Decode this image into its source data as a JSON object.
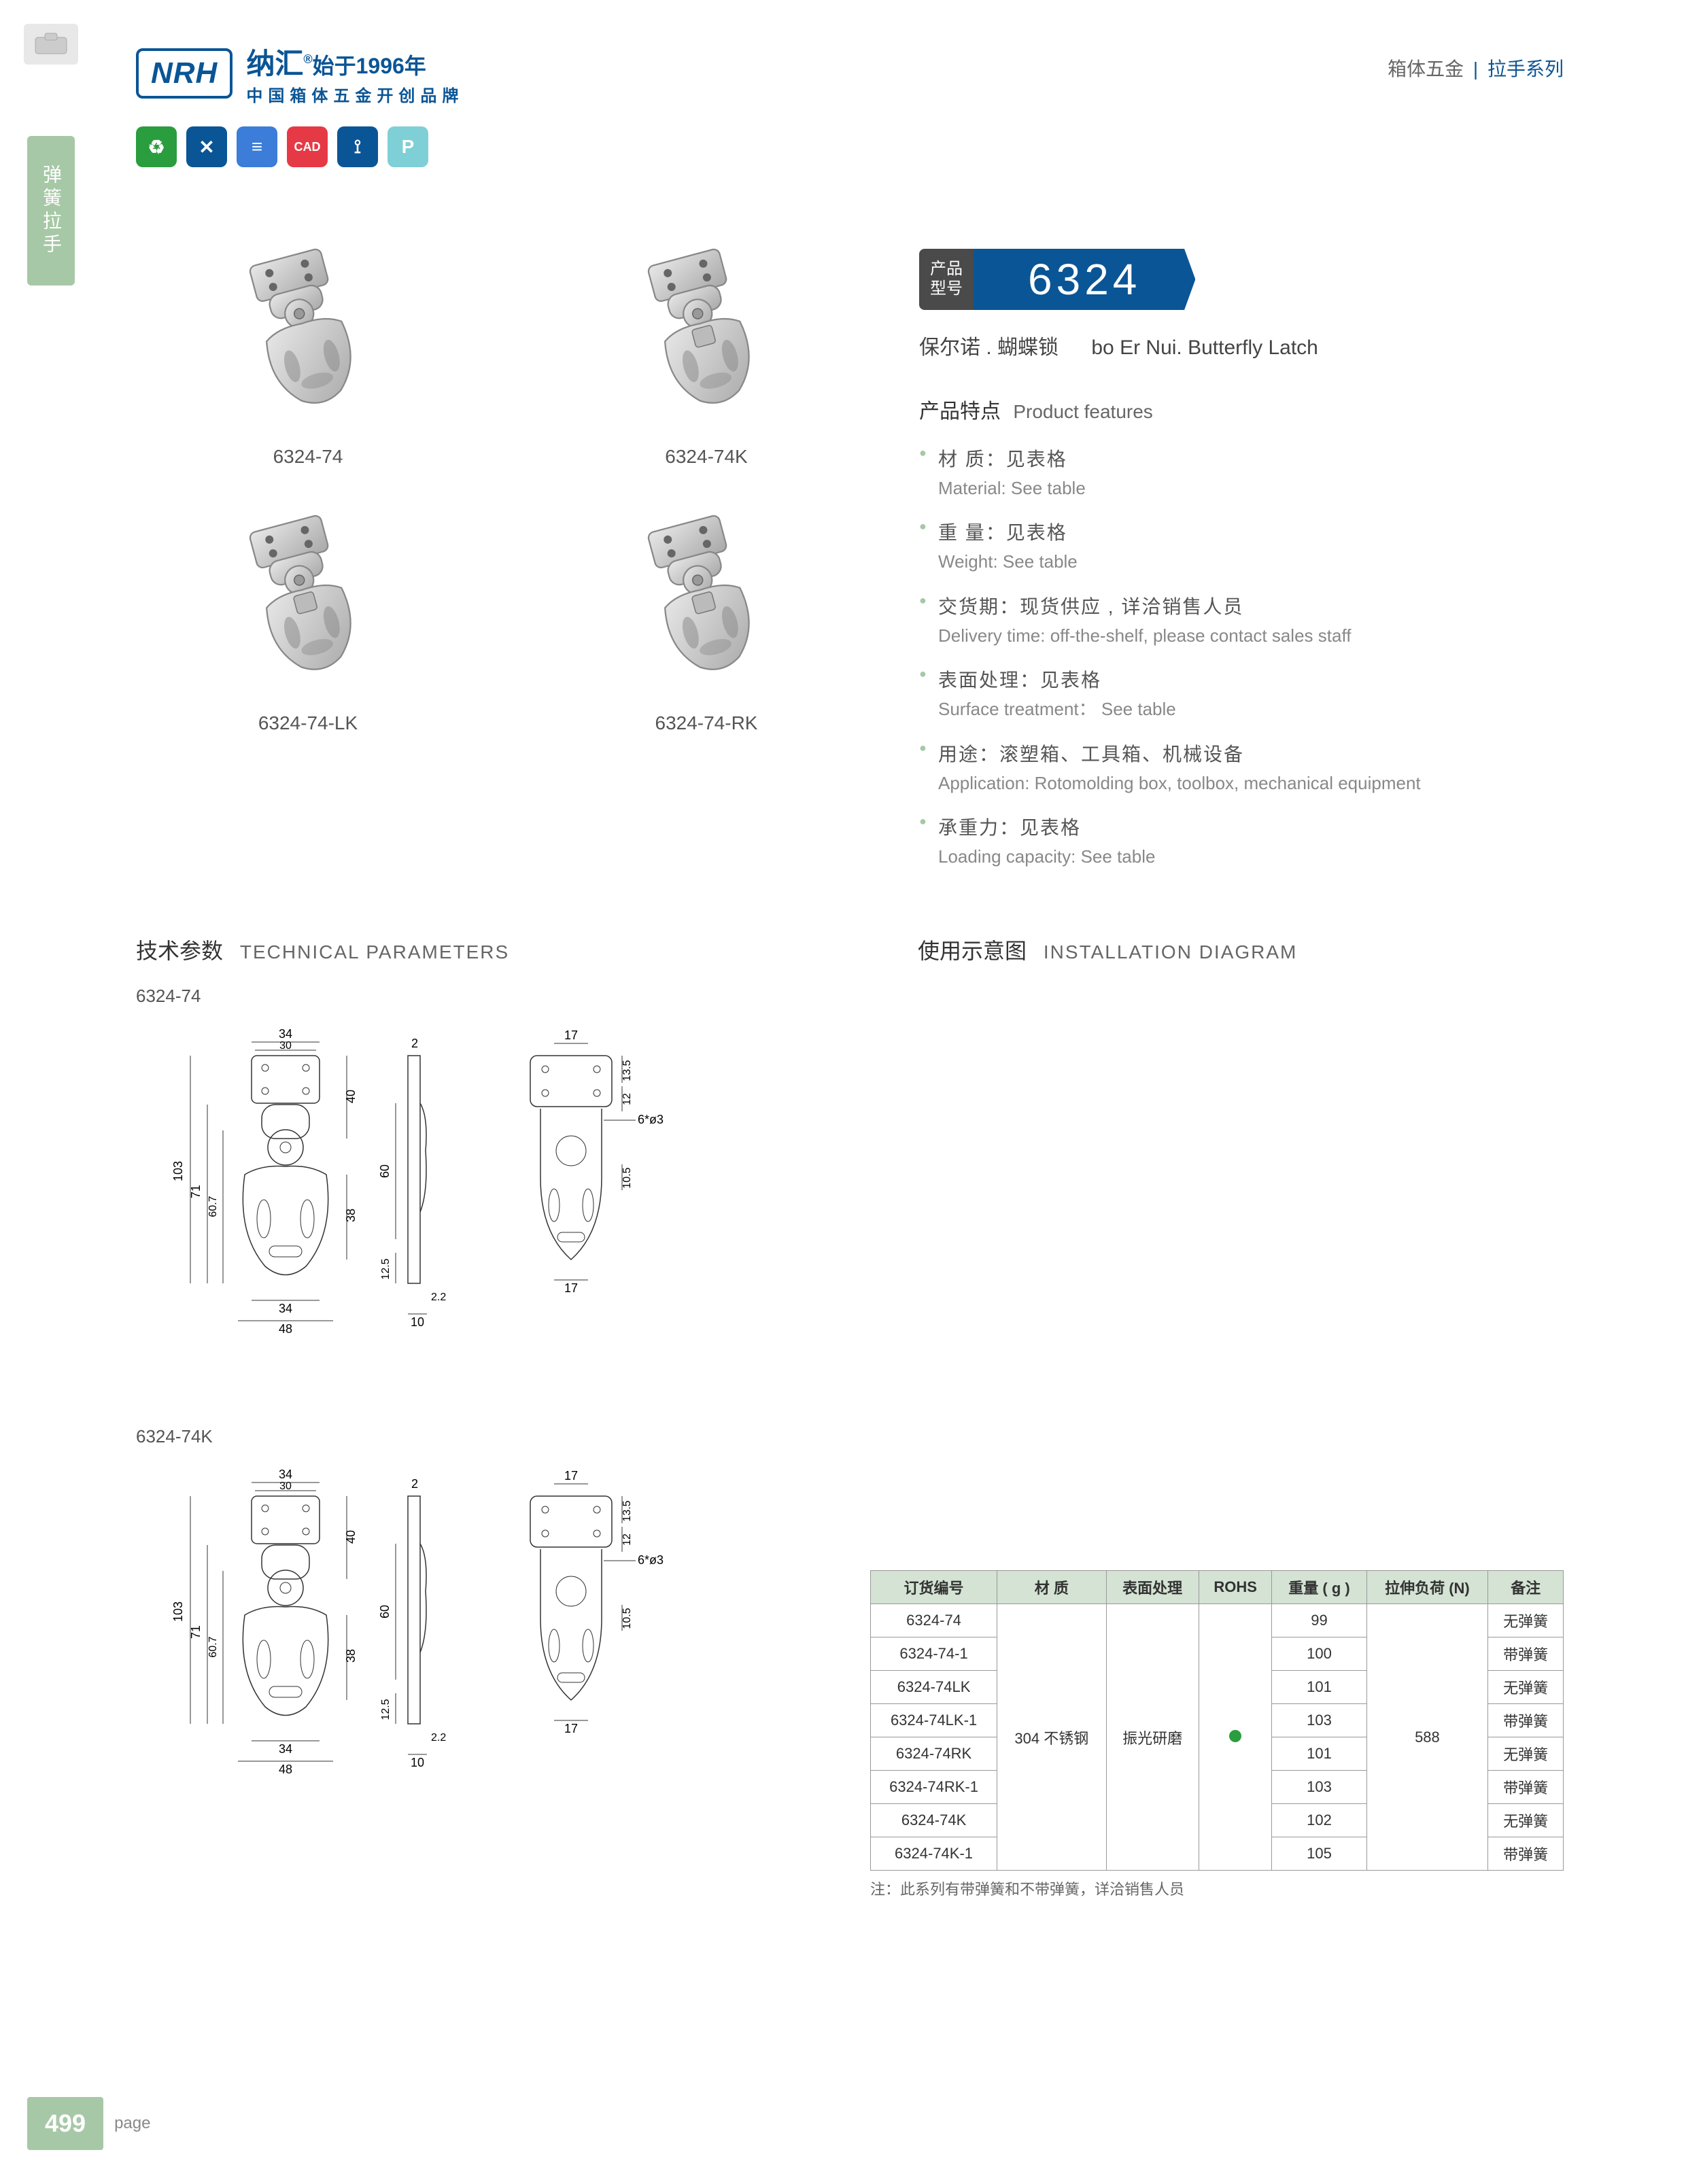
{
  "header": {
    "logo": "NRH",
    "logo_cn_main": "纳汇",
    "logo_cn_year": "始于1996年",
    "logo_cn_sub": "中国箱体五金开创品牌",
    "right_cn_1": "箱体五金",
    "right_sep": "|",
    "right_cn_2": "拉手系列"
  },
  "side_tab": "弹簧拉手",
  "icon_badges": [
    "♻",
    "✕",
    "≡",
    "CAD",
    "⟟",
    "P"
  ],
  "products": [
    {
      "label": "6324-74"
    },
    {
      "label": "6324-74K"
    },
    {
      "label": "6324-74-LK"
    },
    {
      "label": "6324-74-RK"
    }
  ],
  "product_banner": {
    "label_line1": "产品",
    "label_line2": "型号",
    "number": "6324"
  },
  "product_name": {
    "cn": "保尔诺 . 蝴蝶锁",
    "en": "bo Er Nui. Butterfly Latch"
  },
  "features": {
    "title_cn": "产品特点",
    "title_en": "Product features",
    "items": [
      {
        "cn": "材 质：见表格",
        "en": "Material: See table"
      },
      {
        "cn": "重 量：见表格",
        "en": "Weight: See table"
      },
      {
        "cn": "交货期：现货供应 , 详洽销售人员",
        "en": "Delivery time: off-the-shelf, please contact sales staff"
      },
      {
        "cn": "表面处理：见表格",
        "en": "Surface treatment： See table"
      },
      {
        "cn": "用途：滚塑箱、工具箱、机械设备",
        "en": "Application: Rotomolding box, toolbox, mechanical equipment"
      },
      {
        "cn": "承重力：见表格",
        "en": "Loading capacity: See table"
      }
    ]
  },
  "tech_params": {
    "title_cn": "技术参数",
    "title_en": "TECHNICAL PARAMETERS",
    "diagrams": [
      {
        "label": "6324-74",
        "dims": {
          "w_top": "34",
          "w_top2": "30",
          "h_total": "103",
          "h_mid": "71",
          "h_mid2": "60.7",
          "h_upper": "40",
          "h_body": "38",
          "w_bot": "34",
          "w_bot2": "48",
          "side_t": "2",
          "side_h": "60",
          "side_b": "12.5",
          "side_gap": "2.2",
          "side_w": "10",
          "plan_w": "17",
          "plan_h1": "13.5",
          "plan_h2": "12",
          "plan_hole": "6*ø3",
          "plan_mid": "10.5",
          "plan_bot": "17"
        }
      },
      {
        "label": "6324-74K",
        "dims": {
          "w_top": "34",
          "w_top2": "30",
          "h_total": "103",
          "h_mid": "71",
          "h_mid2": "60.7",
          "h_upper": "40",
          "h_body": "38",
          "w_bot": "34",
          "w_bot2": "48",
          "side_t": "2",
          "side_h": "60",
          "side_b": "12.5",
          "side_gap": "2.2",
          "side_w": "10",
          "plan_w": "17",
          "plan_h1": "13.5",
          "plan_h2": "12",
          "plan_hole": "6*ø3",
          "plan_mid": "10.5",
          "plan_bot": "17"
        }
      }
    ]
  },
  "install": {
    "title_cn": "使用示意图",
    "title_en": "INSTALLATION DIAGRAM"
  },
  "spec_table": {
    "columns": [
      "订货编号",
      "材   质",
      "表面处理",
      "ROHS",
      "重量 ( g )",
      "拉伸负荷 (N)",
      "备注"
    ],
    "material": "304 不锈钢",
    "finish": "振光研磨",
    "load": "588",
    "rows": [
      {
        "code": "6324-74",
        "weight": "99",
        "note": "无弹簧"
      },
      {
        "code": "6324-74-1",
        "weight": "100",
        "note": "带弹簧"
      },
      {
        "code": "6324-74LK",
        "weight": "101",
        "note": "无弹簧"
      },
      {
        "code": "6324-74LK-1",
        "weight": "103",
        "note": "带弹簧"
      },
      {
        "code": "6324-74RK",
        "weight": "101",
        "note": "无弹簧"
      },
      {
        "code": "6324-74RK-1",
        "weight": "103",
        "note": "带弹簧"
      },
      {
        "code": "6324-74K",
        "weight": "102",
        "note": "无弹簧"
      },
      {
        "code": "6324-74K-1",
        "weight": "105",
        "note": "带弹簧"
      }
    ],
    "note": "注：此系列有带弹簧和不带弹簧，详洽销售人员"
  },
  "footer": {
    "page_num": "499",
    "page_label": "page"
  },
  "colors": {
    "brand_blue": "#0a5596",
    "accent_green": "#a6c8a6",
    "table_header": "#d4e3d4",
    "rohs_green": "#2a9d3e"
  }
}
